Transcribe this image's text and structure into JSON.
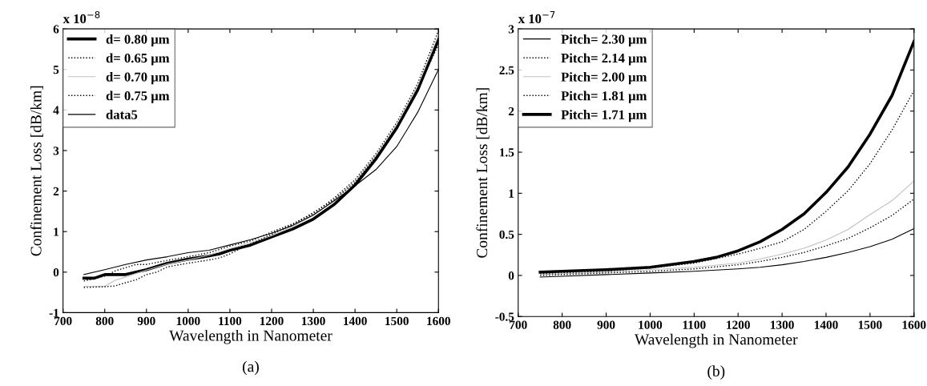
{
  "chart_data": [
    {
      "type": "line",
      "xlabel": "Wavelength in Nanometer",
      "ylabel": "Confinement Loss [dB/km]",
      "annotations": [
        "x 10$^{−8}$",
        "(a)"
      ],
      "xlim": [
        700,
        1600
      ],
      "ylim": [
        -1,
        6
      ],
      "xticks": [
        700,
        800,
        900,
        1000,
        1100,
        1200,
        1300,
        1400,
        1500,
        1600
      ],
      "yticks": [
        -1,
        0,
        1,
        2,
        3,
        4,
        5,
        6
      ],
      "legend": "top left",
      "grid": false,
      "series": [
        {
          "name": "d= 0.80 μm",
          "color": "#000000",
          "line_style": "solid",
          "x": [
            750,
            775,
            800,
            850,
            900,
            950,
            1000,
            1050,
            1075,
            1100,
            1150,
            1200,
            1250,
            1300,
            1350,
            1400,
            1450,
            1500,
            1550,
            1600
          ],
          "values": [
            -0.15,
            -0.15,
            -0.06,
            -0.06,
            0.06,
            0.22,
            0.32,
            0.4,
            0.45,
            0.54,
            0.67,
            0.87,
            1.06,
            1.31,
            1.67,
            2.15,
            2.79,
            3.56,
            4.49,
            5.74
          ]
        },
        {
          "name": "d= 0.65 μm",
          "color": "#000000",
          "line_style": "dotted",
          "x": [
            750,
            800,
            825,
            875,
            900,
            950,
            1000,
            1050,
            1100,
            1150,
            1200,
            1250,
            1300,
            1350,
            1400,
            1450,
            1500,
            1550,
            1600
          ],
          "values": [
            -0.22,
            -0.1,
            0.03,
            0.19,
            0.19,
            0.29,
            0.38,
            0.48,
            0.64,
            0.77,
            0.99,
            1.19,
            1.44,
            1.83,
            2.28,
            2.92,
            3.69,
            4.65,
            5.96
          ]
        },
        {
          "name": "d= 0.70 μm",
          "color": "#c0c0c0",
          "line_style": "solid",
          "x": [
            750,
            800,
            825,
            850,
            900,
            950,
            1000,
            1050,
            1100,
            1150,
            1200,
            1250,
            1300,
            1350,
            1400,
            1450,
            1500,
            1550,
            1600
          ],
          "values": [
            -0.35,
            -0.35,
            -0.2,
            -0.12,
            0.05,
            0.2,
            0.3,
            0.42,
            0.58,
            0.72,
            0.9,
            1.12,
            1.4,
            1.78,
            2.25,
            2.88,
            3.65,
            4.6,
            5.85
          ]
        },
        {
          "name": "d= 0.75 μm",
          "color": "#000000",
          "line_style": "dotted",
          "x": [
            750,
            800,
            825,
            850,
            875,
            900,
            925,
            950,
            1000,
            1050,
            1075,
            1100,
            1125,
            1150,
            1200,
            1250,
            1300,
            1350,
            1400,
            1450,
            1500,
            1550,
            1600
          ],
          "values": [
            -0.38,
            -0.36,
            -0.34,
            -0.26,
            -0.19,
            -0.06,
            0,
            0.13,
            0.22,
            0.3,
            0.35,
            0.45,
            0.58,
            0.7,
            0.93,
            1.17,
            1.47,
            1.79,
            2.21,
            2.85,
            3.59,
            4.52,
            5.61
          ]
        },
        {
          "name": "data5",
          "color": "#000000",
          "line_style": "solid",
          "x": [
            750,
            800,
            850,
            900,
            950,
            1000,
            1050,
            1100,
            1150,
            1200,
            1250,
            1300,
            1350,
            1400,
            1450,
            1500,
            1550,
            1600
          ],
          "values": [
            -0.06,
            0.06,
            0.19,
            0.3,
            0.38,
            0.48,
            0.54,
            0.67,
            0.8,
            0.96,
            1.15,
            1.41,
            1.76,
            2.13,
            2.53,
            3.1,
            3.94,
            5.0
          ]
        }
      ]
    },
    {
      "type": "line",
      "xlabel": "Wavelength in Nanometer",
      "ylabel": "Confinement Loss [dB/km]",
      "annotations": [
        "x 10$^{−7}$",
        "(b)"
      ],
      "xlim": [
        700,
        1600
      ],
      "ylim": [
        -0.5,
        3
      ],
      "xticks": [
        700,
        800,
        900,
        1000,
        1100,
        1200,
        1300,
        1400,
        1500,
        1600
      ],
      "yticks": [
        -0.5,
        0,
        0.5,
        1,
        1.5,
        2,
        2.5,
        3
      ],
      "legend": "top left",
      "grid": false,
      "series": [
        {
          "name": "Pitch= 2.30 μm",
          "color": "#000000",
          "line_style": "solid",
          "x": [
            750,
            800,
            900,
            1000,
            1100,
            1200,
            1250,
            1300,
            1350,
            1400,
            1450,
            1500,
            1550,
            1600
          ],
          "values": [
            -0.02,
            -0.01,
            0.01,
            0.03,
            0.05,
            0.08,
            0.1,
            0.13,
            0.17,
            0.22,
            0.28,
            0.35,
            0.44,
            0.57
          ]
        },
        {
          "name": "Pitch= 2.14 μm",
          "color": "#000000",
          "line_style": "dotted",
          "x": [
            750,
            900,
            1000,
            1100,
            1200,
            1250,
            1300,
            1350,
            1400,
            1450,
            1500,
            1550,
            1600
          ],
          "values": [
            0.02,
            0.05,
            0.09,
            0.15,
            0.26,
            0.33,
            0.41,
            0.56,
            0.78,
            1.03,
            1.36,
            1.77,
            2.25
          ]
        },
        {
          "name": "Pitch= 2.00 μm",
          "color": "#c0c0c0",
          "line_style": "solid",
          "x": [
            750,
            900,
            1000,
            1100,
            1200,
            1250,
            1300,
            1350,
            1400,
            1450,
            1500,
            1550,
            1600
          ],
          "values": [
            0.01,
            0.04,
            0.07,
            0.1,
            0.15,
            0.2,
            0.26,
            0.33,
            0.43,
            0.56,
            0.74,
            0.91,
            1.15
          ]
        },
        {
          "name": "Pitch= 1.81 μm",
          "color": "#000000",
          "line_style": "dotted",
          "x": [
            750,
            900,
            1000,
            1100,
            1200,
            1250,
            1300,
            1350,
            1400,
            1450,
            1500,
            1550,
            1600
          ],
          "values": [
            0.0,
            0.03,
            0.05,
            0.08,
            0.13,
            0.17,
            0.22,
            0.28,
            0.36,
            0.45,
            0.58,
            0.73,
            0.93
          ]
        },
        {
          "name": "Pitch= 1.71 μm",
          "color": "#000000",
          "line_style": "solid",
          "x": [
            750,
            800,
            900,
            1000,
            1100,
            1150,
            1200,
            1250,
            1300,
            1350,
            1400,
            1450,
            1500,
            1550,
            1600
          ],
          "values": [
            0.04,
            0.05,
            0.07,
            0.1,
            0.17,
            0.22,
            0.3,
            0.41,
            0.56,
            0.75,
            1.01,
            1.32,
            1.72,
            2.19,
            2.85
          ]
        }
      ]
    }
  ]
}
